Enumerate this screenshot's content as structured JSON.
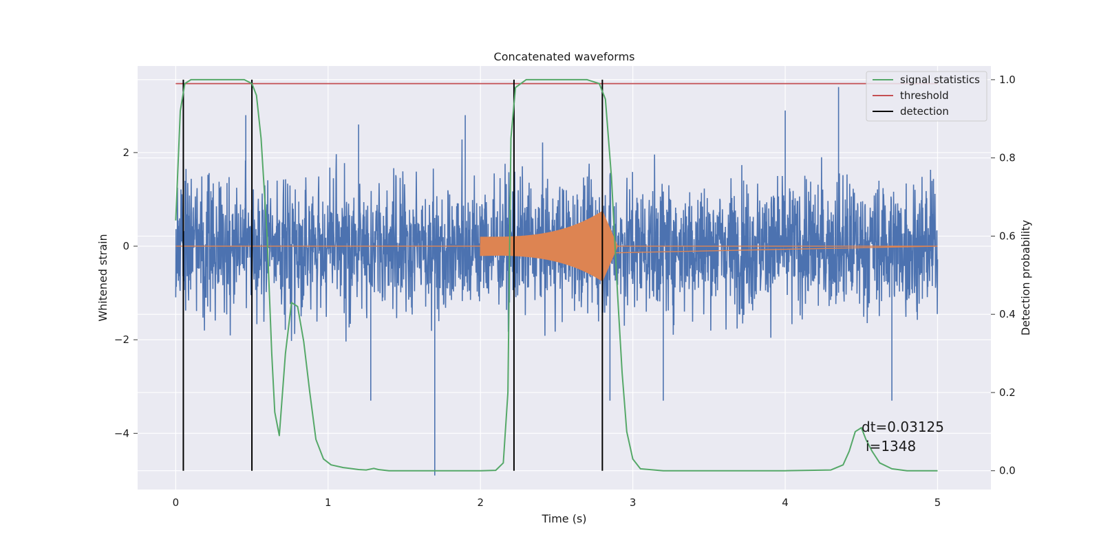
{
  "chart_data": {
    "type": "line",
    "title": "Concatenated waveforms",
    "xlabel": "Time (s)",
    "ylabel": "Whitened strain",
    "y2label": "Detection probability",
    "xlim": [
      -0.25,
      5.35
    ],
    "ylim": [
      -5.2,
      3.85
    ],
    "y2lim": [
      -0.048,
      1.035
    ],
    "xticks": [
      0,
      1,
      2,
      3,
      4,
      5
    ],
    "yticks": [
      -4,
      -2,
      0,
      2
    ],
    "y2ticks": [
      0.0,
      0.2,
      0.4,
      0.6,
      0.8,
      1.0
    ],
    "grid": true,
    "legend_position": "upper right",
    "legend": [
      "signal statistics",
      "threshold",
      "detection"
    ],
    "annotation": {
      "lines": [
        "dt=0.03125",
        "i=1348"
      ],
      "x": 4.5,
      "y2": 0.1
    },
    "colors": {
      "strain": "#4c72b0",
      "waveform": "#dd8452",
      "signal_statistics": "#55a868",
      "threshold": "#c44e52",
      "detection": "#000000",
      "background": "#eaeaf2"
    },
    "series": [
      {
        "name": "strain (noise)",
        "axis": "left",
        "description_points": {
          "x_range": [
            0,
            5
          ],
          "typical_amplitude": 1.3,
          "max_peaks": [
            [
              0.46,
              2.8
            ],
            [
              1.2,
              2.6
            ],
            [
              1.9,
              2.8
            ],
            [
              4.35,
              3.4
            ],
            [
              4.0,
              2.9
            ]
          ],
          "min_peaks": [
            [
              1.28,
              -3.3
            ],
            [
              1.7,
              -4.9
            ],
            [
              2.85,
              -3.3
            ],
            [
              3.2,
              -3.3
            ],
            [
              4.7,
              -3.3
            ]
          ]
        }
      },
      {
        "name": "waveform (chirp)",
        "axis": "left",
        "x_start": 2.0,
        "x_end": 2.9,
        "amp_start": 0.2,
        "amp_peak": 0.75,
        "peak_x": 2.8
      },
      {
        "name": "signal statistics",
        "axis": "right",
        "x": [
          0,
          0.03,
          0.06,
          0.1,
          0.2,
          0.3,
          0.4,
          0.45,
          0.5,
          0.53,
          0.56,
          0.6,
          0.63,
          0.65,
          0.68,
          0.72,
          0.76,
          0.8,
          0.84,
          0.88,
          0.92,
          0.97,
          1.02,
          1.1,
          1.2,
          1.25,
          1.3,
          1.33,
          1.4,
          1.6,
          1.8,
          2.0,
          2.1,
          2.15,
          2.18,
          2.2,
          2.23,
          2.3,
          2.5,
          2.7,
          2.78,
          2.82,
          2.86,
          2.9,
          2.93,
          2.96,
          3.0,
          3.05,
          3.2,
          3.5,
          4.0,
          4.3,
          4.38,
          4.42,
          4.46,
          4.5,
          4.53,
          4.57,
          4.62,
          4.7,
          4.8,
          5.0
        ],
        "y": [
          0.64,
          0.92,
          0.99,
          1.0,
          1.0,
          1.0,
          1.0,
          1.0,
          0.99,
          0.96,
          0.85,
          0.6,
          0.3,
          0.15,
          0.09,
          0.3,
          0.43,
          0.42,
          0.33,
          0.2,
          0.08,
          0.03,
          0.015,
          0.008,
          0.003,
          0.002,
          0.006,
          0.003,
          0.0,
          0.0,
          0.0,
          0.0,
          0.001,
          0.02,
          0.2,
          0.85,
          0.98,
          1.0,
          1.0,
          1.0,
          0.99,
          0.95,
          0.75,
          0.45,
          0.25,
          0.1,
          0.03,
          0.005,
          0.0,
          0.0,
          0.0,
          0.002,
          0.015,
          0.05,
          0.1,
          0.11,
          0.08,
          0.05,
          0.02,
          0.005,
          0.0,
          0.0
        ]
      },
      {
        "name": "threshold",
        "axis": "right",
        "x": [
          0,
          5
        ],
        "y": [
          0.99,
          0.99
        ]
      },
      {
        "name": "detection",
        "axis": "right",
        "type": "vlines",
        "x": [
          0.05,
          0.5,
          2.22,
          2.8
        ],
        "y_range": [
          0.0,
          1.0
        ]
      }
    ]
  }
}
